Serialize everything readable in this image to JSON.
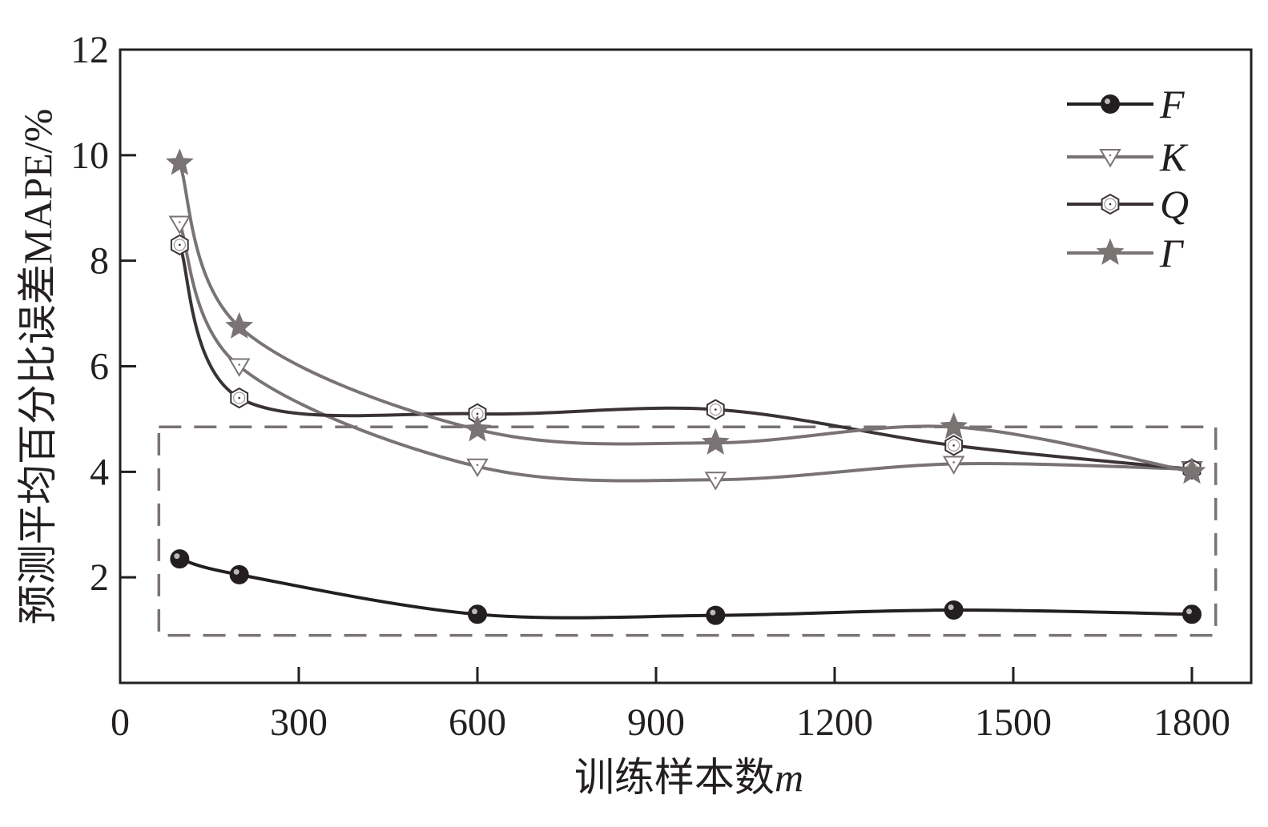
{
  "chart_data": {
    "type": "line",
    "xlabel": "训练样本数",
    "xlabel_var": "m",
    "ylabel": "预测平均百分比误差MAPE/%",
    "xlim": [
      0,
      1850
    ],
    "ylim": [
      0,
      12
    ],
    "x_ticks": [
      "0",
      "300",
      "600",
      "900",
      "1200",
      "1500",
      "1800"
    ],
    "y_ticks": [
      "2",
      "4",
      "6",
      "8",
      "10",
      "12"
    ],
    "x": [
      100,
      200,
      600,
      1000,
      1400,
      1800
    ],
    "series": [
      {
        "name": "F",
        "values": [
          2.35,
          2.05,
          1.3,
          1.28,
          1.38,
          1.3
        ],
        "color": "#231f20",
        "marker": "filled-circle"
      },
      {
        "name": "K",
        "values": [
          8.7,
          6.0,
          4.1,
          3.85,
          4.15,
          4.05
        ],
        "color": "#7a7374",
        "marker": "open-triangle-down"
      },
      {
        "name": "Q",
        "values": [
          8.3,
          5.4,
          5.1,
          5.18,
          4.5,
          4.05
        ],
        "color": "#3a3334",
        "marker": "open-hexagon"
      },
      {
        "name": "Γ",
        "values": [
          9.85,
          6.75,
          4.8,
          4.55,
          4.85,
          4.0
        ],
        "color": "#7a7374",
        "marker": "star"
      }
    ],
    "highlight_box": {
      "x_range": [
        65,
        1840
      ],
      "y_range": [
        0.9,
        4.85
      ],
      "style": "dashed"
    },
    "legend_position": "top-right",
    "grid": false
  }
}
